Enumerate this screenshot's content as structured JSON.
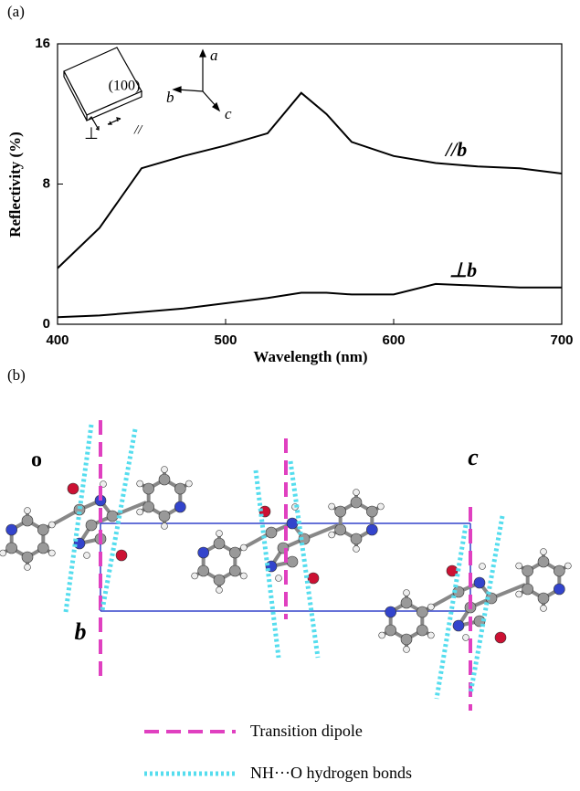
{
  "chart_data": {
    "type": "line",
    "panel_label": "(a)",
    "xlabel": "Wavelength (nm)",
    "ylabel": "Reflectivity (%)",
    "x": [
      400,
      425,
      450,
      475,
      500,
      525,
      545,
      560,
      575,
      600,
      625,
      650,
      675,
      700
    ],
    "series": [
      {
        "name": "//b",
        "color": "#000000",
        "values": [
          3.2,
          5.5,
          8.9,
          9.6,
          10.2,
          10.9,
          13.2,
          12.0,
          10.4,
          9.6,
          9.2,
          9.0,
          8.9,
          8.6
        ]
      },
      {
        "name": "⊥b",
        "color": "#000000",
        "values": [
          0.4,
          0.5,
          0.7,
          0.9,
          1.2,
          1.5,
          1.8,
          1.8,
          1.7,
          1.7,
          2.3,
          2.2,
          2.1,
          2.1
        ]
      }
    ],
    "xlim": [
      400,
      700
    ],
    "xticks": [
      400,
      500,
      600,
      700
    ],
    "ylim": [
      0,
      16
    ],
    "yticks": [
      0,
      8,
      16
    ],
    "annotations": [
      "(100)",
      "a",
      "b",
      "c",
      "⊥",
      "//"
    ]
  },
  "diagram": {
    "panel_label": "(b)",
    "axis_labels": {
      "origin": "o",
      "c": "c",
      "b": "b"
    },
    "legend": [
      "Transition dipole",
      "NH···O hydrogen bonds"
    ]
  }
}
